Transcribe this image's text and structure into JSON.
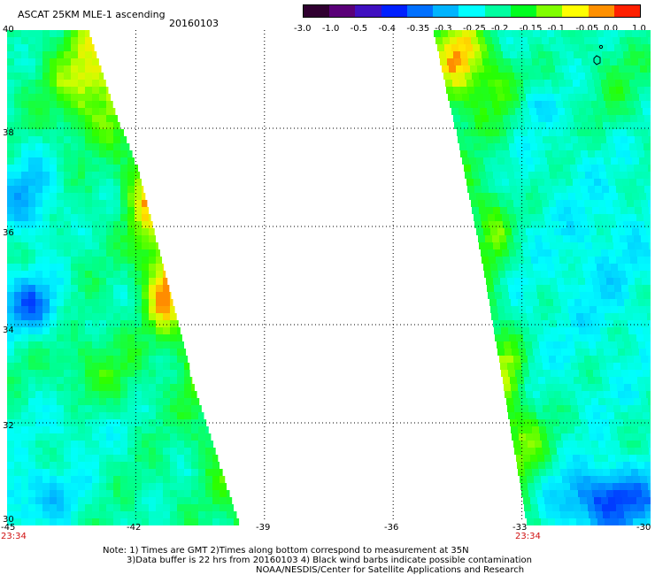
{
  "header": {
    "product": "ASCAT 25KM MLE-1 ascending",
    "date": "20160103"
  },
  "colorbar": {
    "ticks": [
      "-3.0",
      "-1.0",
      "-0.5",
      "-0.4",
      "-0.35",
      "-0.3",
      "-0.25",
      "-0.2",
      "-0.15",
      "-0.1",
      "-0.05",
      "0.0",
      "1.0"
    ],
    "colors": [
      "#300030",
      "#5a0078",
      "#4010c0",
      "#0020ff",
      "#0070ff",
      "#00b4ff",
      "#00ffff",
      "#00ffa0",
      "#00ff20",
      "#80ff00",
      "#ffff00",
      "#ff9000",
      "#ff2000"
    ]
  },
  "map": {
    "lat_labels": [
      "40",
      "38",
      "36",
      "34",
      "32",
      "30"
    ],
    "lon_labels": [
      "-45",
      "-42",
      "-39",
      "-36",
      "-33",
      "-30"
    ],
    "lat_range": [
      30,
      40
    ],
    "lon_range": [
      -45,
      -30
    ],
    "grid": true,
    "swath_times": [
      "23:34",
      "23:34"
    ]
  },
  "footer": {
    "note_line1": "Note: 1) Times are GMT 2)Times along bottom correspond to measurement at 35N",
    "note_line2": "3)Data buffer is 22 hrs from 20160103 4) Black wind barbs indicate possible contamination",
    "credit": "NOAA/NESDIS/Center for Satellite Applications and Research"
  }
}
